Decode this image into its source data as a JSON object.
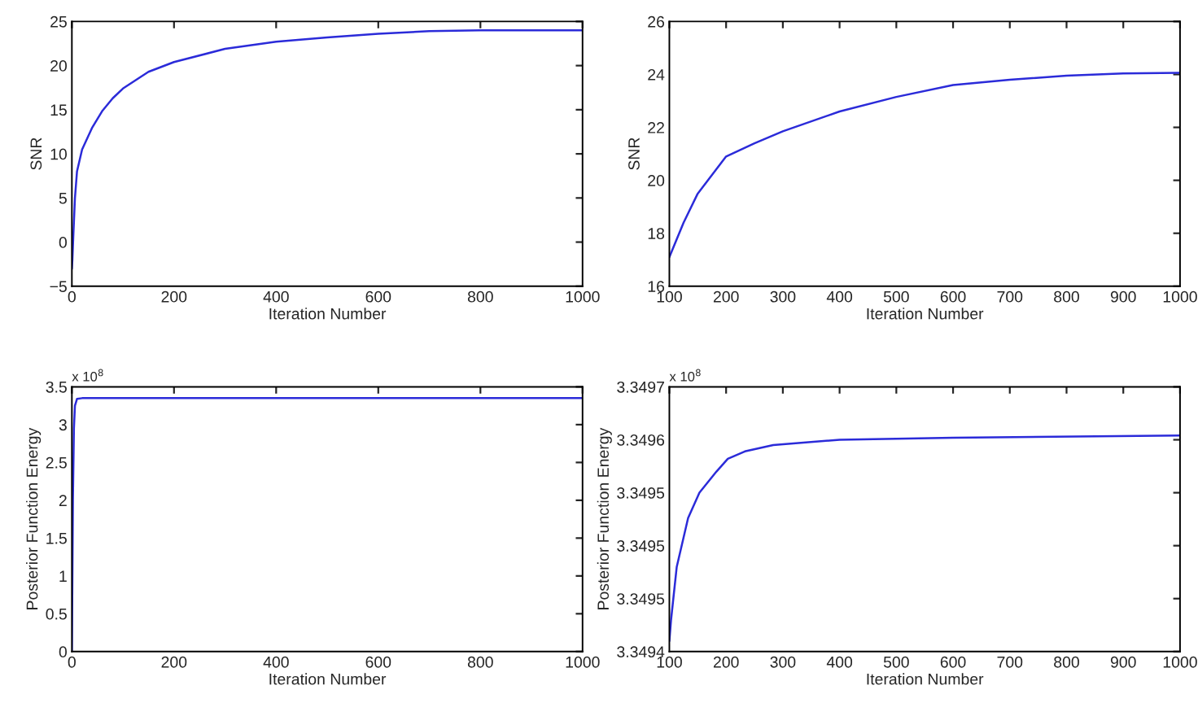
{
  "chart_data": [
    {
      "type": "line",
      "xlabel": "Iteration Number",
      "ylabel": "SNR",
      "xlim": [
        0,
        1000
      ],
      "ylim": [
        -5,
        25
      ],
      "xticks": [
        0,
        200,
        400,
        600,
        800,
        1000
      ],
      "yticks": [
        {
          "value": -5,
          "label": "−5"
        },
        0,
        5,
        10,
        15,
        20,
        25
      ],
      "grid": false,
      "x": [
        0,
        1,
        3,
        6,
        10,
        20,
        40,
        60,
        80,
        100,
        150,
        200,
        300,
        400,
        500,
        600,
        700,
        800,
        900,
        1000
      ],
      "series": [
        {
          "color": "#2b2bd9",
          "values": [
            -3,
            -2,
            1,
            5,
            8,
            10.5,
            13,
            14.9,
            16.3,
            17.4,
            19.3,
            20.4,
            21.9,
            22.7,
            23.2,
            23.6,
            23.9,
            24.0,
            24.0,
            24.0
          ]
        }
      ]
    },
    {
      "type": "line",
      "xlabel": "Iteration Number",
      "ylabel": "SNR",
      "xlim": [
        100,
        1000
      ],
      "ylim": [
        16,
        26
      ],
      "xticks": [
        100,
        200,
        300,
        400,
        500,
        600,
        700,
        800,
        900,
        1000
      ],
      "yticks": [
        16,
        18,
        20,
        22,
        24,
        26
      ],
      "grid": false,
      "x": [
        100,
        125,
        150,
        200,
        250,
        300,
        400,
        500,
        600,
        700,
        800,
        900,
        1000
      ],
      "series": [
        {
          "color": "#2b2bd9",
          "values": [
            17.1,
            18.4,
            19.5,
            20.9,
            21.4,
            21.85,
            22.6,
            23.15,
            23.6,
            23.8,
            23.95,
            24.04,
            24.06
          ]
        }
      ]
    },
    {
      "type": "line",
      "xlabel": "Iteration Number",
      "ylabel": "Posterior Function Energy",
      "xlim": [
        0,
        1000
      ],
      "ylim": [
        0,
        3.5
      ],
      "xticks": [
        0,
        200,
        400,
        600,
        800,
        1000
      ],
      "yticks": [
        0,
        0.5,
        1,
        1.5,
        2,
        2.5,
        3,
        3.5
      ],
      "grid": false,
      "annotations": [
        "x 10$^{8}$"
      ],
      "x": [
        0,
        2,
        4,
        6,
        10,
        20,
        100,
        1000
      ],
      "series": [
        {
          "color": "#2b2bd9",
          "values": [
            0,
            2.0,
            2.95,
            3.25,
            3.34,
            3.35,
            3.35,
            3.35
          ]
        }
      ]
    },
    {
      "type": "line",
      "xlabel": "Iteration Number",
      "ylabel": "Posterior Function Energy",
      "xlim": [
        100,
        1000
      ],
      "ylim": [
        3.3494,
        3.34965
      ],
      "xticks": [
        100,
        200,
        300,
        400,
        500,
        600,
        700,
        800,
        900,
        1000
      ],
      "yticks": [
        3.3494,
        {
          "value": 3.34945,
          "label": "3.3495"
        },
        3.3495,
        {
          "value": 3.34955,
          "label": "3.3495"
        },
        3.3496,
        {
          "value": 3.34965,
          "label": "3.3497"
        }
      ],
      "grid": false,
      "annotations": [
        "x 10$^{8}$"
      ],
      "x": [
        100,
        103,
        113,
        133,
        153,
        183,
        203,
        233,
        283,
        400,
        600,
        1000
      ],
      "series": [
        {
          "color": "#2b2bd9",
          "values": [
            3.34941,
            3.34943,
            3.34948,
            3.349526,
            3.34955,
            3.34957,
            3.349582,
            3.349589,
            3.349595,
            3.3496,
            3.349602,
            3.349604
          ]
        }
      ]
    }
  ]
}
